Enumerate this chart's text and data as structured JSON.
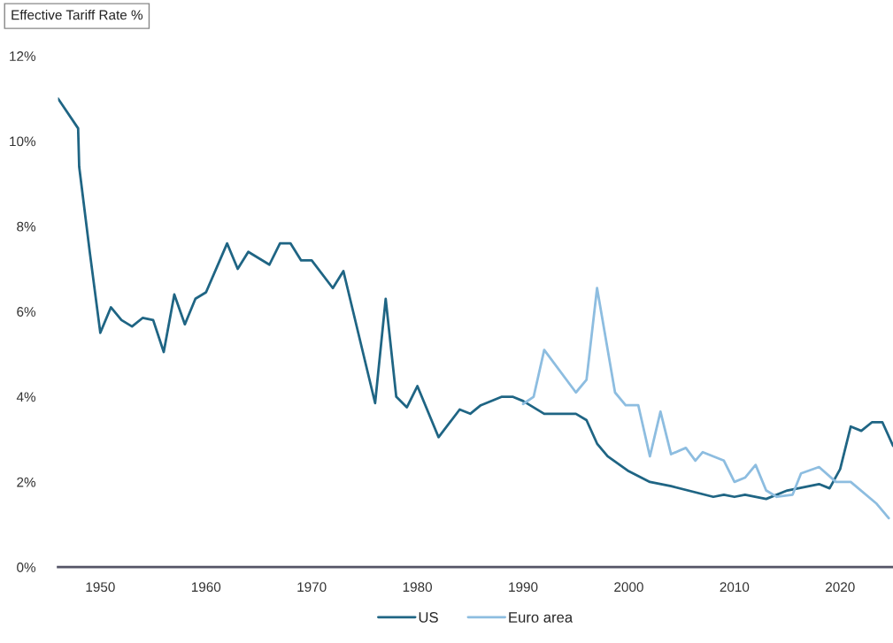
{
  "chart_data": {
    "type": "line",
    "title": "Effective Tariff Rate %",
    "xlim": [
      1946,
      2025
    ],
    "xticks": [
      1950,
      1960,
      1970,
      1980,
      1990,
      2000,
      2010,
      2020
    ],
    "ylim": [
      0,
      12
    ],
    "yticks": [
      {
        "value": 0,
        "label": "0%"
      },
      {
        "value": 2,
        "label": "2%"
      },
      {
        "value": 4,
        "label": "4%"
      },
      {
        "value": 6,
        "label": "6%"
      },
      {
        "value": 8,
        "label": "8%"
      },
      {
        "value": 10,
        "label": "10%"
      },
      {
        "value": 12,
        "label": "12%"
      }
    ],
    "grid": false,
    "legend": "bottom",
    "series": [
      {
        "name": "US",
        "color": "#1f6584",
        "x": [
          1946,
          1947.9,
          1948,
          1949,
          1950,
          1951,
          1952,
          1953,
          1954,
          1955,
          1956,
          1957,
          1958,
          1959,
          1960,
          1962,
          1963,
          1964,
          1966,
          1967,
          1968,
          1969,
          1970,
          1972,
          1973,
          1976,
          1977,
          1978,
          1979,
          1980,
          1982,
          1984,
          1985,
          1986,
          1988,
          1989,
          1990,
          1992,
          1995,
          1996,
          1997,
          1998,
          2000,
          2002,
          2004,
          2008,
          2009,
          2010,
          2011,
          2013,
          2015,
          2018,
          2019,
          2020,
          2021,
          2022,
          2023,
          2024,
          2025
        ],
        "values": [
          11.0,
          10.3,
          9.4,
          7.4,
          5.5,
          6.1,
          5.8,
          5.65,
          5.85,
          5.8,
          5.05,
          6.4,
          5.7,
          6.3,
          6.45,
          7.6,
          7.0,
          7.4,
          7.1,
          7.6,
          7.6,
          7.2,
          7.2,
          6.55,
          6.95,
          3.85,
          6.3,
          4.0,
          3.75,
          4.25,
          3.05,
          3.7,
          3.6,
          3.8,
          4.0,
          4.0,
          3.9,
          3.6,
          3.6,
          3.45,
          2.9,
          2.6,
          2.25,
          2.0,
          1.9,
          1.65,
          1.7,
          1.65,
          1.7,
          1.6,
          1.8,
          1.95,
          1.85,
          2.3,
          3.3,
          3.2,
          3.4,
          3.4,
          2.85
        ]
      },
      {
        "name": "Euro area",
        "color": "#8dbde0",
        "x": [
          1990,
          1991,
          1992,
          1995,
          1996,
          1997,
          1998.7,
          1999.7,
          2000.9,
          2002,
          2003,
          2004,
          2005.4,
          2006.3,
          2007,
          2009,
          2010,
          2011,
          2012,
          2013,
          2014,
          2015.5,
          2016.3,
          2018,
          2019.6,
          2021,
          2023.4,
          2024.6
        ],
        "values": [
          3.83,
          4.0,
          5.1,
          4.1,
          4.4,
          6.55,
          4.1,
          3.8,
          3.8,
          2.6,
          3.65,
          2.65,
          2.8,
          2.5,
          2.7,
          2.5,
          2.0,
          2.1,
          2.4,
          1.8,
          1.65,
          1.7,
          2.2,
          2.35,
          2.0,
          2.0,
          1.5,
          1.15
        ]
      }
    ]
  }
}
